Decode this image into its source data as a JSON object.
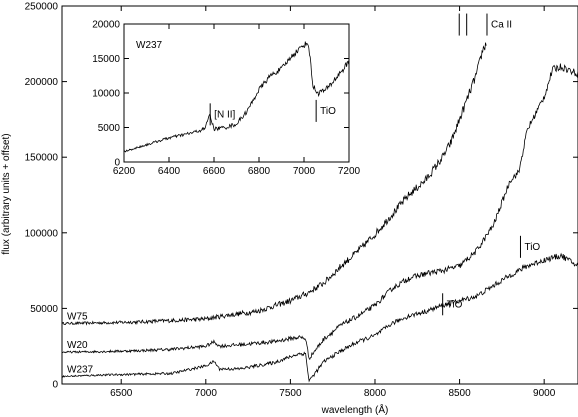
{
  "chart_data": [
    {
      "type": "line",
      "xlabel": "wavelength (Å)",
      "ylabel": "flux (arbitrary units + offset)",
      "xlim": [
        6150,
        9200
      ],
      "ylim": [
        0,
        250000
      ],
      "xticks": [
        6500,
        7000,
        7500,
        8000,
        8500,
        9000
      ],
      "yticks": [
        0,
        50000,
        100000,
        150000,
        200000,
        250000
      ],
      "series": [
        {
          "name": "W75",
          "noise": 1500,
          "x": [
            6150,
            6400,
            6600,
            6800,
            7000,
            7100,
            7300,
            7500,
            7600,
            7700,
            7800,
            7900,
            8000,
            8100,
            8200,
            8300,
            8400,
            8450,
            8500,
            8550,
            8600,
            8640,
            8660
          ],
          "y": [
            40000,
            40500,
            41000,
            42000,
            43000,
            45000,
            48000,
            55000,
            60000,
            67000,
            78000,
            88000,
            99000,
            112000,
            125000,
            135000,
            150000,
            160000,
            175000,
            190000,
            205000,
            222000,
            225000
          ]
        },
        {
          "name": "W20",
          "noise": 1200,
          "x": [
            6150,
            6400,
            6600,
            6800,
            7000,
            7050,
            7080,
            7200,
            7400,
            7550,
            7590,
            7610,
            7700,
            7800,
            7900,
            8000,
            8100,
            8200,
            8300,
            8400,
            8500,
            8600,
            8700,
            8800,
            8850,
            8900,
            9000,
            9050,
            9100,
            9200
          ],
          "y": [
            21000,
            21500,
            22000,
            23000,
            25000,
            28000,
            25000,
            26000,
            28000,
            31000,
            30000,
            17000,
            30000,
            39000,
            45000,
            52000,
            63000,
            70000,
            73000,
            75000,
            78000,
            88000,
            105000,
            135000,
            140000,
            168000,
            190000,
            208000,
            210000,
            205000
          ]
        },
        {
          "name": "W237",
          "noise": 1000,
          "x": [
            6150,
            6400,
            6600,
            6800,
            7000,
            7050,
            7080,
            7200,
            7400,
            7550,
            7590,
            7610,
            7700,
            7800,
            7900,
            8000,
            8100,
            8200,
            8300,
            8400,
            8500,
            8600,
            8700,
            8800,
            8900,
            9000,
            9100,
            9200
          ],
          "y": [
            5000,
            6000,
            6500,
            7000,
            12000,
            15000,
            10000,
            10000,
            14000,
            20000,
            20000,
            2000,
            15000,
            22000,
            28000,
            32000,
            40000,
            45000,
            48000,
            52000,
            55000,
            58000,
            65000,
            72000,
            78000,
            82000,
            85000,
            78000
          ]
        }
      ],
      "annotations": [
        {
          "label": "Ca II",
          "x": [
            8498,
            8542,
            8662
          ],
          "y": 245000
        },
        {
          "label": "TiO",
          "x": 8860,
          "y": 98000
        },
        {
          "label": "TiO",
          "x": 8400,
          "y": 60000
        }
      ]
    },
    {
      "type": "line",
      "title": "W237",
      "xlim": [
        6200,
        7200
      ],
      "ylim": [
        0,
        20000
      ],
      "xticks": [
        6200,
        6400,
        6600,
        6800,
        7000,
        7200
      ],
      "yticks": [
        0,
        5000,
        10000,
        15000,
        20000
      ],
      "series": [
        {
          "noise": 250,
          "x": [
            6200,
            6300,
            6400,
            6500,
            6560,
            6580,
            6600,
            6650,
            6700,
            6750,
            6800,
            6850,
            6900,
            6950,
            7000,
            7020,
            7040,
            7060,
            7100,
            7150,
            7200
          ],
          "y": [
            1500,
            2500,
            3500,
            4200,
            4800,
            7000,
            4800,
            5000,
            5500,
            7500,
            10500,
            12500,
            13500,
            15500,
            17000,
            17200,
            11000,
            10000,
            10500,
            12500,
            14500
          ]
        }
      ],
      "annotations": [
        {
          "label": "[N II]",
          "x": 6583,
          "y": 8500
        },
        {
          "label": "TiO",
          "x": 7054,
          "y": 9000
        }
      ]
    }
  ]
}
